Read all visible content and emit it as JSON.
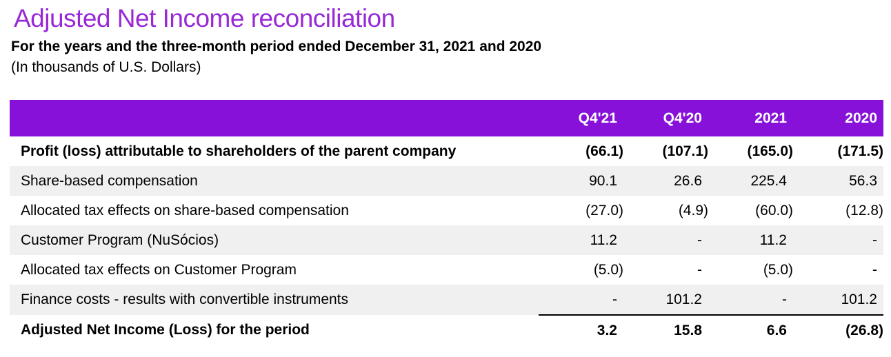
{
  "page": {
    "title": "Adjusted Net Income reconciliation",
    "subtitle": "For the years and the three-month period ended December 31, 2021 and 2020",
    "unit_note": "(In thousands of U.S. Dollars)"
  },
  "colors": {
    "title_purple": "#9929D6",
    "header_purple": "#8711D8",
    "row_stripe": "#F0F0F0",
    "header_text": "#FFFFFF",
    "body_text": "#000000"
  },
  "table": {
    "columns": [
      "Q4'21",
      "Q4'20",
      "2021",
      "2020"
    ],
    "rows": [
      {
        "label": "Profit (loss) attributable to shareholders of the parent company",
        "values": [
          "(66.1)",
          "(107.1)",
          "(165.0)",
          "(171.5)"
        ],
        "bold": true,
        "striped": false,
        "total_line_below": false
      },
      {
        "label": "Share-based compensation",
        "values": [
          "90.1",
          "26.6",
          "225.4",
          "56.3"
        ],
        "bold": false,
        "striped": true,
        "total_line_below": false
      },
      {
        "label": "Allocated tax effects on share-based compensation",
        "values": [
          "(27.0)",
          "(4.9)",
          "(60.0)",
          "(12.8)"
        ],
        "bold": false,
        "striped": false,
        "total_line_below": false
      },
      {
        "label": "Customer Program (NuSócios)",
        "values": [
          "11.2",
          "-",
          "11.2",
          "-"
        ],
        "bold": false,
        "striped": true,
        "total_line_below": false
      },
      {
        "label": "Allocated tax effects on Customer Program",
        "values": [
          "(5.0)",
          "-",
          "(5.0)",
          "-"
        ],
        "bold": false,
        "striped": false,
        "total_line_below": false
      },
      {
        "label": "Finance costs - results with convertible instruments",
        "values": [
          "-",
          "101.2",
          "-",
          "101.2"
        ],
        "bold": false,
        "striped": true,
        "total_line_below": true
      },
      {
        "label": "Adjusted Net Income (Loss) for the period",
        "values": [
          "3.2",
          "15.8",
          "6.6",
          "(26.8)"
        ],
        "bold": true,
        "striped": false,
        "total_line_below": false
      }
    ]
  }
}
